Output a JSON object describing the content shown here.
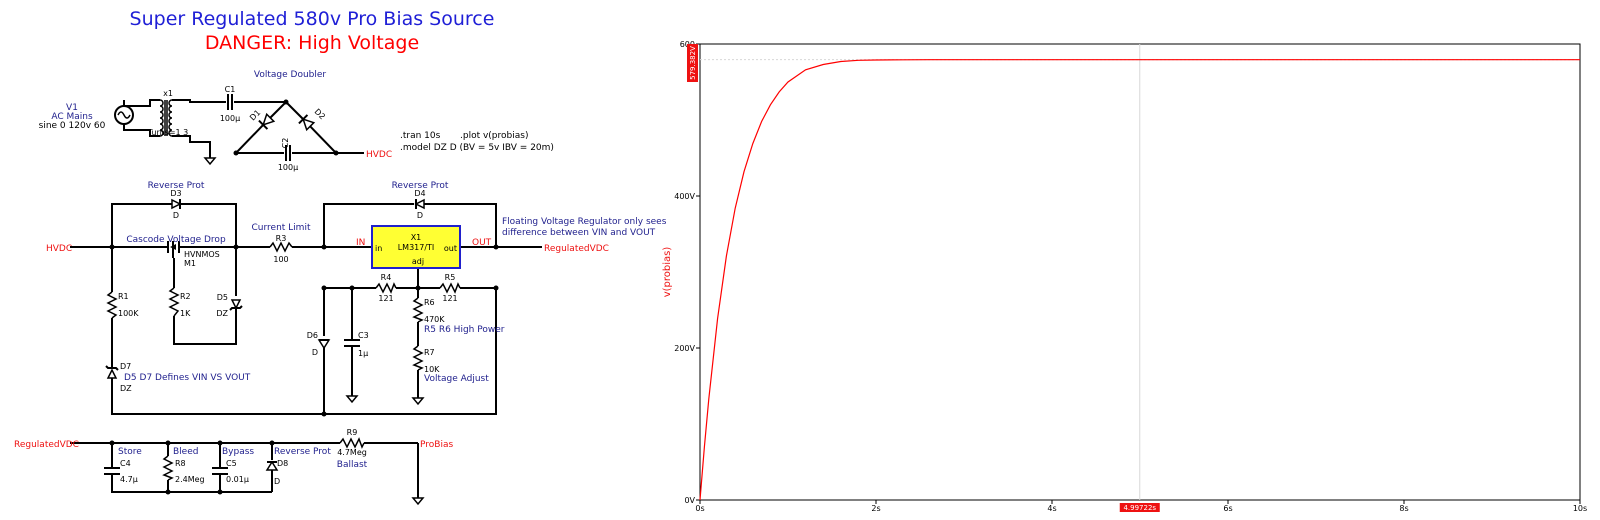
{
  "title": "Super Regulated 580v Pro Bias Source",
  "danger": "DANGER: High Voltage",
  "labels": {
    "voltage_doubler": "Voltage Doubler",
    "v1_name": "V1",
    "v1_desc": "AC Mains",
    "v1_sine": "sine 0 120v 60",
    "x1_name": "x1",
    "turns": "Turns=1 3",
    "c1": "C1",
    "c1_val": "100µ",
    "d1": "D1",
    "d2": "D2",
    "c2": "C2",
    "c2_val": "100µ",
    "hvdc1": "HVDC",
    "tran": ".tran 10s",
    "plot": ".plot v(probias)",
    "model": ".model DZ D (BV = 5v IBV = 20m)",
    "rev_prot_d3": "Reverse Prot",
    "d3": "D3",
    "d3_model": "D",
    "rev_prot_d4": "Reverse Prot",
    "d4": "D4",
    "d4_model": "D",
    "hvdc2": "HVDC",
    "cascode": "Cascode Voltage Drop",
    "m1_model": "HVNMOS",
    "m1": "M1",
    "current_limit": "Current Limit",
    "r3": "R3",
    "r3_val": "100",
    "in_net": "IN",
    "x1_ic": "X1",
    "ic_part": "LM317/TI",
    "ic_in": "in",
    "ic_out": "out",
    "ic_adj": "adj",
    "out_net": "OUT",
    "floating_1": "Floating Voltage Regulator only sees",
    "floating_2": "difference between VIN and VOUT",
    "regvdc1": "RegulatedVDC",
    "r4": "R4",
    "r4_val": "121",
    "r5": "R5",
    "r5_val": "121",
    "r1": "R1",
    "r1_val": "100K",
    "r2": "R2",
    "r2_val": "1K",
    "d5": "D5",
    "d5_model": "DZ",
    "r6": "R6",
    "r6_val": "470K",
    "r5r6": "R5 R6 High Power",
    "d6": "D6",
    "d6_model": "D",
    "c3": "C3",
    "c3_val": "1µ",
    "r7": "R7",
    "r7_val": "10K",
    "vadj": "Voltage Adjust",
    "d7": "D7",
    "d7_model": "DZ",
    "d5d7": "D5 D7 Defines VIN VS VOUT",
    "regvdc2": "RegulatedVDC",
    "store": "Store",
    "c4": "C4",
    "c4_val": "4.7µ",
    "bleed": "Bleed",
    "r8": "R8",
    "r8_val": "2.4Meg",
    "bypass": "Bypass",
    "c5": "C5",
    "c5_val": "0.01µ",
    "rev_prot_d8": "Reverse Prot",
    "d8": "D8",
    "d8_model": "D",
    "r9": "R9",
    "r9_val": "4.7Meg",
    "ballast": "Ballast",
    "probias": "ProBias"
  },
  "colors": {
    "title": "#1f1fd6",
    "danger": "#ff0000",
    "label_blue": "#1e1e8c",
    "net_red": "#ee1111",
    "wire": "#000000",
    "ic_fill": "#ffff33",
    "ic_border": "#2020cc",
    "trace": "#ff0000",
    "grid": "#d8d8d8"
  },
  "chart_data": {
    "type": "line",
    "ylabel": "v(probias)",
    "xlim": [
      0,
      10
    ],
    "ylim": [
      0,
      600
    ],
    "x_ticks": [
      "0s",
      "2s",
      "4s",
      "6s",
      "8s",
      "10s"
    ],
    "y_ticks": [
      "0V",
      "200V",
      "400V",
      "600"
    ],
    "cursor_x_label": "4.99722s",
    "cursor_y_label": "579.382V",
    "cursor_x": 4.99722,
    "cursor_y": 579.382,
    "series": [
      {
        "x": [
          0,
          0.05,
          0.1,
          0.2,
          0.3,
          0.4,
          0.5,
          0.6,
          0.7,
          0.8,
          0.9,
          1.0,
          1.2,
          1.4,
          1.6,
          1.8,
          2.0,
          2.3,
          2.6,
          3.0,
          3.5,
          4.0,
          5.0,
          6.0,
          7.0,
          8.0,
          9.0,
          10.0
        ],
        "y": [
          0,
          70,
          133,
          239,
          321,
          384,
          432,
          469,
          498,
          520,
          537,
          550,
          566,
          573,
          577,
          578.5,
          579,
          579.2,
          579.3,
          579.35,
          579.37,
          579.38,
          579.382,
          579.382,
          579.382,
          579.382,
          579.382,
          579.382
        ]
      }
    ]
  }
}
